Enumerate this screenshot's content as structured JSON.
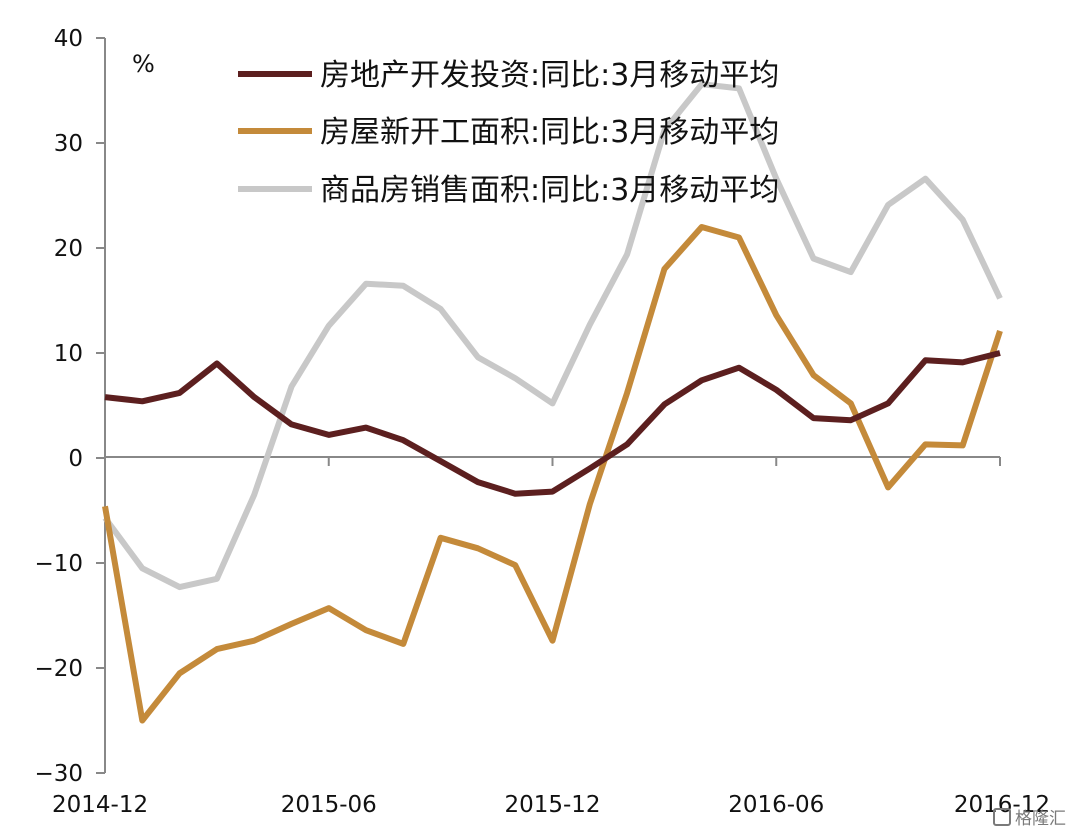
{
  "chart_data": {
    "type": "line",
    "unit_label": "%",
    "x": [
      "2014-12",
      "2015-01",
      "2015-02",
      "2015-03",
      "2015-04",
      "2015-05",
      "2015-06",
      "2015-07",
      "2015-08",
      "2015-09",
      "2015-10",
      "2015-11",
      "2015-12",
      "2016-01",
      "2016-02",
      "2016-03",
      "2016-04",
      "2016-05",
      "2016-06",
      "2016-07",
      "2016-08",
      "2016-09",
      "2016-10",
      "2016-11",
      "2016-12"
    ],
    "x_tick_labels": [
      "2014-12",
      "2015-06",
      "2015-12",
      "2016-06",
      "2016-12"
    ],
    "ylim": [
      -30,
      40
    ],
    "y_ticks": [
      40,
      30,
      20,
      10,
      0,
      -10,
      -20,
      -30
    ],
    "y_tick_labels": [
      "40",
      "30",
      "20",
      "10",
      "0",
      "−10",
      "−20",
      "−30"
    ],
    "legend_position": "top",
    "series": [
      {
        "name": "房地产开发投资:同比:3月移动平均",
        "color": "#5c1f1f",
        "values": [
          5.8,
          5.4,
          6.2,
          9.0,
          5.8,
          3.2,
          2.2,
          2.9,
          1.7,
          -0.3,
          -2.3,
          -3.4,
          -3.2,
          -1.0,
          1.3,
          5.1,
          7.4,
          8.6,
          6.5,
          3.8,
          3.6,
          5.2,
          9.3,
          9.1,
          10.0
        ]
      },
      {
        "name": "房屋新开工面积:同比:3月移动平均",
        "color": "#c48a3a",
        "values": [
          -4.6,
          -25.0,
          -20.5,
          -18.2,
          -17.4,
          -15.8,
          -14.3,
          -16.4,
          -17.7,
          -7.6,
          -8.6,
          -10.2,
          -17.4,
          -4.4,
          6.2,
          18.0,
          22.0,
          21.0,
          13.6,
          7.9,
          5.2,
          -2.8,
          1.3,
          1.2,
          12.1
        ]
      },
      {
        "name": "商品房销售面积:同比:3月移动平均",
        "color": "#c8c8c8",
        "values": [
          -5.7,
          -10.5,
          -12.3,
          -11.5,
          -3.5,
          6.8,
          12.6,
          16.6,
          16.4,
          14.2,
          9.6,
          7.6,
          5.2,
          12.7,
          19.4,
          31.2,
          35.6,
          35.2,
          26.6,
          19.0,
          17.7,
          24.1,
          26.6,
          22.7,
          15.2
        ]
      }
    ]
  },
  "watermark": {
    "text": "格隆汇"
  }
}
